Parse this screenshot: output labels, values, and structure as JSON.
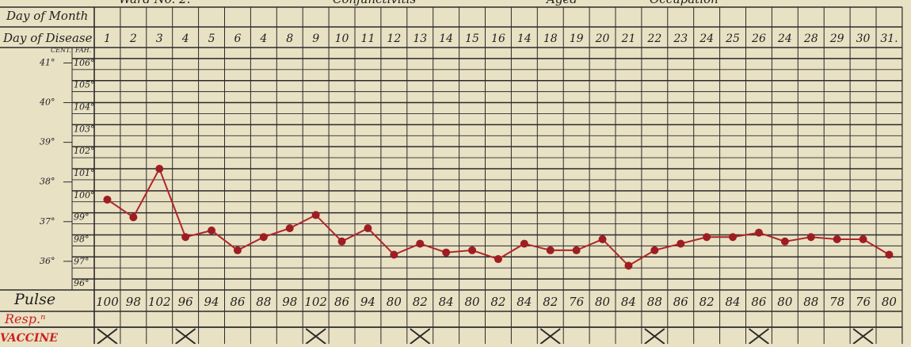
{
  "header": {
    "institution_fragment": "Ward No. 2.",
    "diagnosis_fragment": "Conjunctivitis",
    "age_fragment": "Aged",
    "occupation_fragment": "Occupation"
  },
  "row_labels": {
    "day_of_month": "Day of Month",
    "day_of_disease": "Day of Disease",
    "pulse": "Pulse",
    "resp": "Resp.ⁿ",
    "vaccine": "VACCINE"
  },
  "scale_headers": {
    "cent": "CENT.",
    "fahr": "FAH."
  },
  "colors": {
    "paper": "#e9e1c4",
    "grid": "#2a2a2a",
    "trace": "#b0262a",
    "point": "#9e1d22",
    "ink": "#1f1f1f",
    "vaccine": "#cc2020"
  },
  "chart_data": {
    "type": "line",
    "title": "",
    "xlabel": "Day of Disease",
    "ylabel": "",
    "x": [
      "1",
      "2",
      "3",
      "4",
      "5",
      "6",
      "4",
      "8",
      "9",
      "10",
      "11",
      "12",
      "13",
      "14",
      "15",
      "16",
      "14",
      "18",
      "19",
      "20",
      "21",
      "22",
      "23",
      "24",
      "25",
      "26",
      "24",
      "28",
      "29",
      "30",
      "31."
    ],
    "temp_axis_fahrenheit": {
      "ylim": [
        95.5,
        106.5
      ],
      "ticks": [
        "106°",
        "105°",
        "104°",
        "103°",
        "102°",
        "101°",
        "100°",
        "99°",
        "98°",
        "97°",
        "96°"
      ]
    },
    "temp_axis_centigrade": {
      "ticks": [
        "41°",
        "40°",
        "39°",
        "38°",
        "37°",
        "36°"
      ],
      "values": [
        41,
        40,
        39,
        38,
        37,
        36
      ]
    },
    "series": [
      {
        "values": [
          99.6,
          98.8,
          101.0,
          97.9,
          98.2,
          97.3,
          97.9,
          98.3,
          98.9,
          97.7,
          98.3,
          97.1,
          97.6,
          97.2,
          97.3,
          96.9,
          97.6,
          97.3,
          97.3,
          97.8,
          96.6,
          97.3,
          97.6,
          97.9,
          97.9,
          98.1,
          97.7,
          97.9,
          97.8,
          97.8,
          97.1
        ]
      }
    ],
    "pulse": [
      "100",
      "98",
      "102",
      "96",
      "94",
      "86",
      "88",
      "98",
      "102",
      "86",
      "94",
      "80",
      "82",
      "84",
      "80",
      "82",
      "84",
      "82",
      "76",
      "80",
      "84",
      "88",
      "86",
      "82",
      "84",
      "86",
      "80",
      "88",
      "78",
      "76",
      "80"
    ],
    "vaccine_marks": [
      "1",
      "4",
      "9",
      "13",
      "18",
      "22",
      "26",
      "30"
    ],
    "grid": true,
    "legend": "none"
  }
}
